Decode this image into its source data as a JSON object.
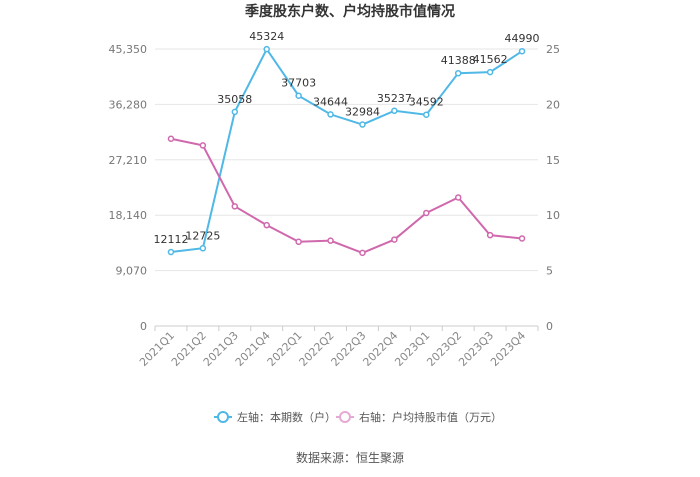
{
  "chart_data": {
    "type": "line",
    "title": "季度股东户数、户均持股市值情况",
    "categories": [
      "2021Q1",
      "2021Q2",
      "2021Q3",
      "2021Q4",
      "2022Q1",
      "2022Q2",
      "2022Q3",
      "2022Q4",
      "2023Q1",
      "2023Q2",
      "2023Q3",
      "2023Q4"
    ],
    "y_left": {
      "min": 0,
      "max": 45350,
      "ticks": [
        0,
        9070,
        18140,
        27210,
        36280,
        45350
      ],
      "tick_labels": [
        "0",
        "9,070",
        "18,140",
        "27,210",
        "36,280",
        "45,350"
      ]
    },
    "y_right": {
      "min": 0,
      "max": 25,
      "ticks": [
        0,
        5,
        10,
        15,
        20,
        25
      ],
      "tick_labels": [
        "0",
        "5",
        "10",
        "15",
        "20",
        "25"
      ]
    },
    "series": [
      {
        "name": "左轴：本期数（户）",
        "axis": "left",
        "color": "#4fb8e6",
        "values": [
          12112,
          12725,
          35058,
          45324,
          37703,
          34644,
          32984,
          35237,
          34592,
          41388,
          41562,
          44990
        ],
        "labels": [
          "12112",
          "12725",
          "35058",
          "45324",
          "37703",
          "34644",
          "32984",
          "35237",
          "34592",
          "41388",
          "41562",
          "44990"
        ]
      },
      {
        "name": "右轴：户均持股市值（万元）",
        "axis": "right",
        "color": "#d068ad",
        "values": [
          16.9,
          16.3,
          10.8,
          9.1,
          7.6,
          7.7,
          6.6,
          7.8,
          10.2,
          11.6,
          8.2,
          7.9
        ]
      }
    ],
    "legend_position": "bottom",
    "grid": "horizontal",
    "source": "数据来源：恒生聚源"
  }
}
